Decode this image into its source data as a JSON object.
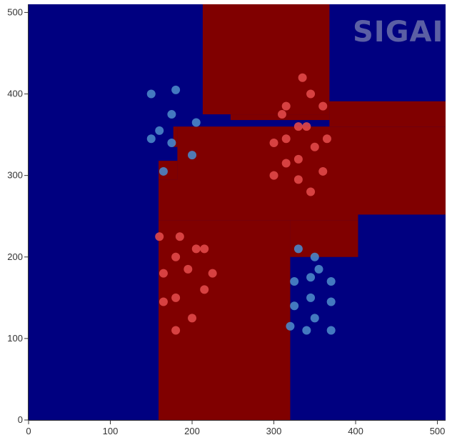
{
  "chart_data": {
    "type": "scatter",
    "title": "",
    "xlabel": "",
    "ylabel": "",
    "xlim": [
      0,
      510
    ],
    "ylim": [
      0,
      510
    ],
    "x_ticks": [
      0,
      100,
      200,
      300,
      400,
      500
    ],
    "y_ticks": [
      0,
      100,
      200,
      300,
      400,
      500
    ],
    "grid": false,
    "background_color": "#000080",
    "region_color": "#800000",
    "decision_regions": [
      {
        "x": [
          213,
          368
        ],
        "y": [
          375,
          510
        ]
      },
      {
        "x": [
          247,
          368
        ],
        "y": [
          368,
          375
        ]
      },
      {
        "x": [
          368,
          510
        ],
        "y": [
          360,
          391
        ]
      },
      {
        "x": [
          182,
          510
        ],
        "y": [
          252,
          360
        ]
      },
      {
        "x": [
          177,
          182
        ],
        "y": [
          335,
          360
        ]
      },
      {
        "x": [
          159,
          182
        ],
        "y": [
          295,
          318
        ]
      },
      {
        "x": [
          159,
          403
        ],
        "y": [
          245,
          295
        ]
      },
      {
        "x": [
          159,
          320
        ],
        "y": [
          0,
          245
        ]
      },
      {
        "x": [
          320,
          403
        ],
        "y": [
          200,
          245
        ]
      }
    ],
    "series": [
      {
        "color": "#e04848",
        "points": [
          [
            335,
            420
          ],
          [
            345,
            400
          ],
          [
            310,
            375
          ],
          [
            315,
            385
          ],
          [
            360,
            385
          ],
          [
            330,
            360
          ],
          [
            340,
            360
          ],
          [
            315,
            345
          ],
          [
            365,
            345
          ],
          [
            300,
            340
          ],
          [
            350,
            335
          ],
          [
            330,
            320
          ],
          [
            315,
            315
          ],
          [
            300,
            300
          ],
          [
            330,
            295
          ],
          [
            360,
            305
          ],
          [
            345,
            280
          ],
          [
            160,
            225
          ],
          [
            185,
            225
          ],
          [
            205,
            210
          ],
          [
            215,
            210
          ],
          [
            180,
            200
          ],
          [
            165,
            180
          ],
          [
            195,
            185
          ],
          [
            225,
            180
          ],
          [
            180,
            150
          ],
          [
            215,
            160
          ],
          [
            165,
            145
          ],
          [
            200,
            125
          ],
          [
            180,
            110
          ]
        ]
      },
      {
        "color": "#4a86c6",
        "points": [
          [
            150,
            400
          ],
          [
            180,
            405
          ],
          [
            175,
            375
          ],
          [
            205,
            365
          ],
          [
            160,
            355
          ],
          [
            150,
            345
          ],
          [
            175,
            340
          ],
          [
            200,
            325
          ],
          [
            165,
            305
          ],
          [
            330,
            210
          ],
          [
            350,
            200
          ],
          [
            325,
            170
          ],
          [
            345,
            175
          ],
          [
            355,
            185
          ],
          [
            370,
            170
          ],
          [
            345,
            150
          ],
          [
            325,
            140
          ],
          [
            370,
            145
          ],
          [
            350,
            125
          ],
          [
            320,
            115
          ],
          [
            340,
            110
          ],
          [
            370,
            110
          ]
        ]
      }
    ]
  },
  "watermark": {
    "text": "SIGAI"
  }
}
